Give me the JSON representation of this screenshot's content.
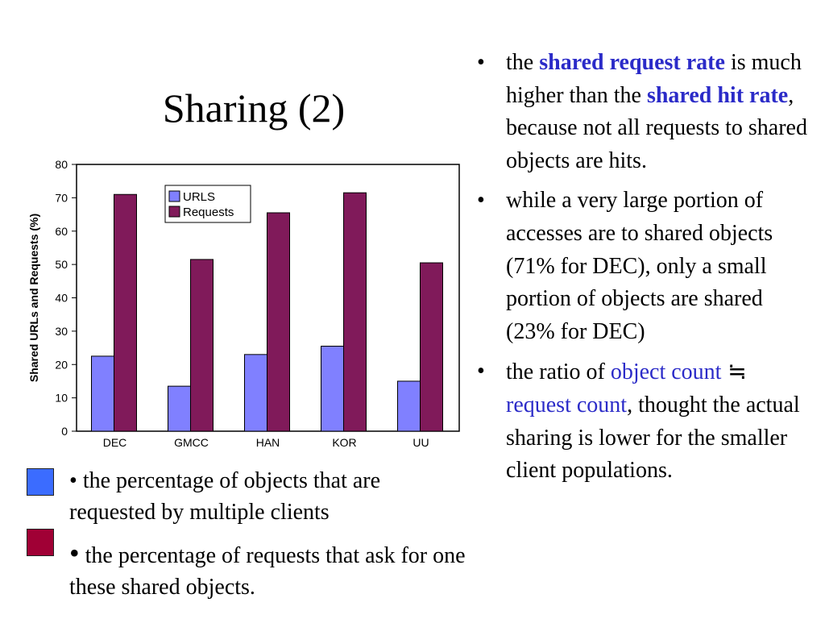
{
  "slide": {
    "title": "Sharing (2)"
  },
  "legend_notes": [
    {
      "color": "#3b6cff",
      "bullet": "•",
      "text": "the percentage of objects that are requested by multiple clients"
    },
    {
      "color": "#a00035",
      "bullet": "•",
      "text": "the percentage of requests that ask for one these shared objects."
    }
  ],
  "bullets": {
    "b1": {
      "pre": "the ",
      "hl1": "shared request rate",
      "mid1": " is much higher than the ",
      "hl2": "shared hit rate",
      "post": ", because not all requests to shared objects are hits."
    },
    "b2": {
      "text": "while a very large portion of accesses are to shared objects (71% for DEC), only a small portion of objects are shared (23% for DEC)"
    },
    "b3": {
      "pre": "the ratio of ",
      "hl1": "object count",
      "sym": " ≒ ",
      "hl2": "request count",
      "post": ", thought the actual sharing is lower for the smaller client populations."
    }
  },
  "chart_data": {
    "type": "bar",
    "categories": [
      "DEC",
      "GMCC",
      "HAN",
      "KOR",
      "UU"
    ],
    "series": [
      {
        "name": "URLS",
        "color": "#8080ff",
        "values": [
          22.5,
          13.5,
          23,
          25.5,
          15
        ]
      },
      {
        "name": "Requests",
        "color": "#801a5a",
        "values": [
          71,
          51.5,
          65.5,
          71.5,
          50.5
        ]
      }
    ],
    "ylabel": "Shared URLs and Requests (%)",
    "ylim": [
      0,
      80
    ],
    "yticks": [
      0,
      10,
      20,
      30,
      40,
      50,
      60,
      70,
      80
    ],
    "grid": false,
    "legend_position": "top-left"
  }
}
